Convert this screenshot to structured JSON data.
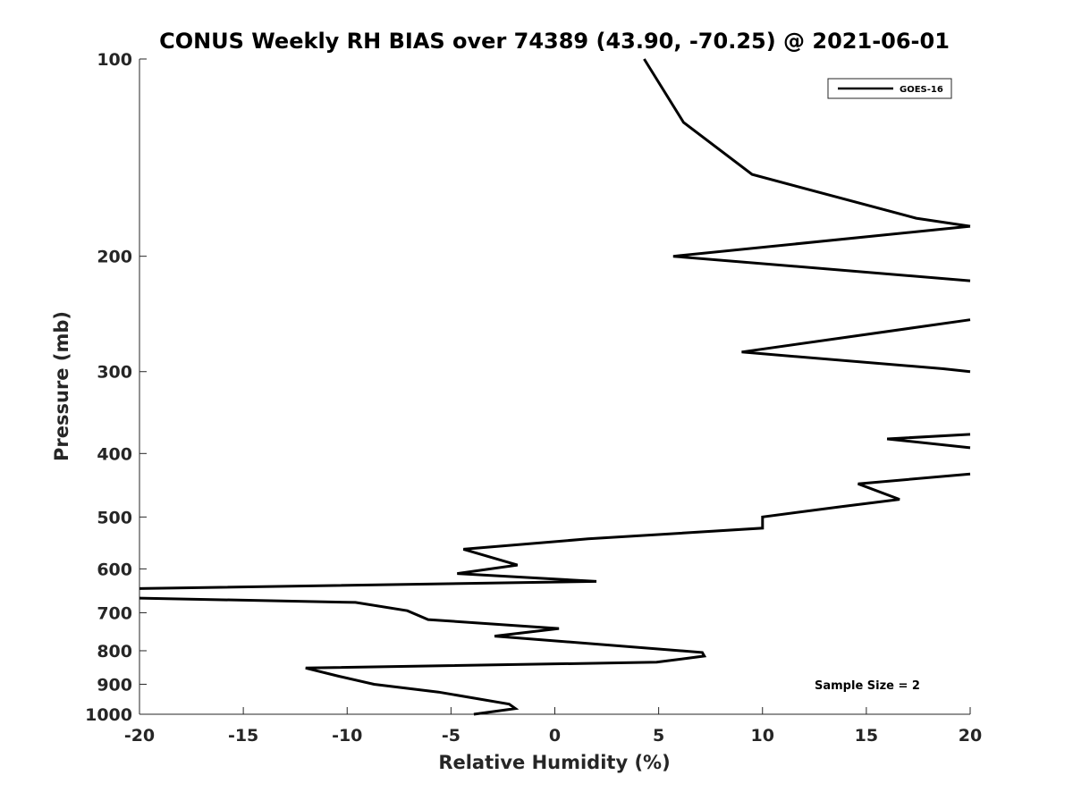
{
  "chart_data": {
    "type": "line",
    "title": "CONUS Weekly RH BIAS over 74389 (43.90, -70.25) @ 2021-06-01",
    "xlabel": "Relative Humidity (%)",
    "ylabel": "Pressure (mb)",
    "xlim": [
      -20,
      20
    ],
    "ylim": [
      100,
      1000
    ],
    "y_scale": "log",
    "y_reversed": true,
    "x_ticks": [
      -20,
      -15,
      -10,
      -5,
      0,
      5,
      10,
      15,
      20
    ],
    "y_ticks": [
      100,
      200,
      300,
      400,
      500,
      600,
      700,
      800,
      900,
      1000
    ],
    "grid": false,
    "legend_position": "top-right",
    "annotation": "Sample Size = 2",
    "series": [
      {
        "name": "GOES-16",
        "color": "#000000",
        "points": [
          [
            4.3,
            100
          ],
          [
            6.2,
            125
          ],
          [
            9.5,
            150
          ],
          [
            17.4,
            175
          ],
          [
            20,
            180
          ],
          [
            null,
            null
          ],
          [
            20,
            180
          ],
          [
            5.7,
            200
          ],
          [
            20,
            218
          ],
          [
            null,
            null
          ],
          [
            20,
            250
          ],
          [
            9.0,
            280
          ],
          [
            18.7,
            297
          ],
          [
            20,
            300
          ],
          [
            null,
            null
          ],
          [
            20,
            374
          ],
          [
            16.0,
            380
          ],
          [
            20,
            392
          ],
          [
            null,
            null
          ],
          [
            20,
            430
          ],
          [
            14.6,
            445
          ],
          [
            16.6,
            470
          ],
          [
            13.8,
            482
          ],
          [
            10.0,
            500
          ],
          [
            10.0,
            520
          ],
          [
            1.6,
            540
          ],
          [
            -4.4,
            560
          ],
          [
            -1.8,
            592
          ],
          [
            -4.7,
            610
          ],
          [
            2.0,
            627
          ],
          [
            -20,
            643
          ],
          [
            null,
            null
          ],
          [
            -20,
            665
          ],
          [
            -9.6,
            675
          ],
          [
            -7.1,
            695
          ],
          [
            -6.1,
            717
          ],
          [
            0.2,
            740
          ],
          [
            -2.9,
            760
          ],
          [
            7.1,
            805
          ],
          [
            7.2,
            815
          ],
          [
            4.9,
            833
          ],
          [
            -12.0,
            850
          ],
          [
            -10.4,
            875
          ],
          [
            -8.7,
            900
          ],
          [
            -5.6,
            925
          ],
          [
            -2.2,
            965
          ],
          [
            -1.9,
            980
          ],
          [
            -3.9,
            1000
          ]
        ]
      }
    ]
  }
}
